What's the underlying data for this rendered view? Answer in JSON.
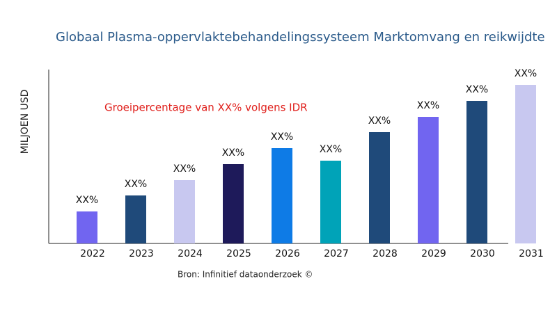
{
  "chart_data": {
    "type": "bar",
    "title": "Globaal Plasma-oppervlaktebehandelingssysteem Marktomvang en reikwijdte",
    "y_label": "MILJOEN USD",
    "annotation": "Groeipercentage van XX% volgens IDR",
    "source": "Bron: Infinitief dataonderzoek ©",
    "categories": [
      "2022",
      "2023",
      "2024",
      "2025",
      "2026",
      "2027",
      "2028",
      "2029",
      "2030",
      "2031"
    ],
    "values": [
      46,
      69,
      91,
      114,
      137,
      119,
      160,
      182,
      205,
      228
    ],
    "value_labels": [
      "XX%",
      "XX%",
      "XX%",
      "XX%",
      "XX%",
      "XX%",
      "XX%",
      "XX%",
      "XX%",
      "XX%"
    ],
    "colors": [
      "#7165f0",
      "#1f4a7a",
      "#c8c8f0",
      "#1e1a5a",
      "#0e7be6",
      "#00a3b8",
      "#1f4a7a",
      "#7165f0",
      "#1f4a7a",
      "#c8c8f0"
    ],
    "ylim": [
      0,
      250
    ]
  }
}
